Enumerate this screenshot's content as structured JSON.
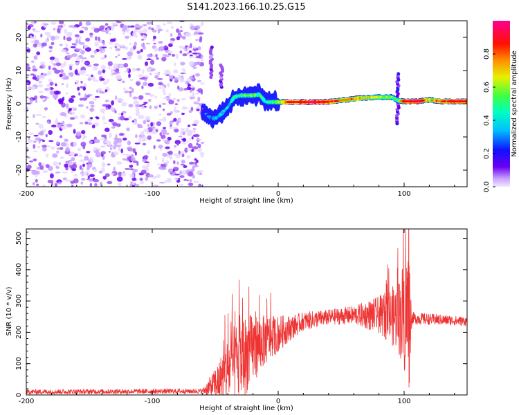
{
  "title": "S141.2023.166.10.25.G15",
  "colors": {
    "snr_line": "#ee3333",
    "colormap": [
      "#e8d8ff",
      "#c8a0ff",
      "#9a50f0",
      "#6a00f0",
      "#2020ff",
      "#00b0ff",
      "#00ffd0",
      "#40ff40",
      "#f0f000",
      "#ff8000",
      "#ff0000",
      "#ff0090"
    ]
  },
  "chart_data": [
    {
      "type": "heatmap",
      "xlabel": "Height of straight line (km)",
      "ylabel": "Frequency (Hz)",
      "xlim": [
        -200,
        150
      ],
      "ylim": [
        -25,
        25
      ],
      "xticks": [
        -200,
        -100,
        0,
        100
      ],
      "yticks": [
        -20,
        -10,
        0,
        10,
        20
      ],
      "colorbar": {
        "label": "Normalized spectral amplitude",
        "range": [
          0.0,
          1.0
        ],
        "ticks": [
          "0.0",
          "0.2",
          "0.4",
          "0.6",
          "0.8"
        ]
      },
      "noise_region": [
        -200,
        -60
      ],
      "ridge": [
        {
          "x": -60,
          "y": -2,
          "a": 0.25
        },
        {
          "x": -55,
          "y": -4,
          "a": 0.35
        },
        {
          "x": -50,
          "y": -4.5,
          "a": 0.4
        },
        {
          "x": -45,
          "y": -3,
          "a": 0.45
        },
        {
          "x": -40,
          "y": -1,
          "a": 0.45
        },
        {
          "x": -35,
          "y": 2,
          "a": 0.5
        },
        {
          "x": -30,
          "y": 2.5,
          "a": 0.55
        },
        {
          "x": -20,
          "y": 2.5,
          "a": 0.6
        },
        {
          "x": -15,
          "y": 2.8,
          "a": 0.55
        },
        {
          "x": -10,
          "y": 0.5,
          "a": 0.5
        },
        {
          "x": 0,
          "y": 0.5,
          "a": 0.6
        },
        {
          "x": 10,
          "y": 0.5,
          "a": 0.9
        },
        {
          "x": 20,
          "y": 0.5,
          "a": 0.9
        },
        {
          "x": 30,
          "y": 0.5,
          "a": 0.95
        },
        {
          "x": 40,
          "y": 0.6,
          "a": 0.85
        },
        {
          "x": 50,
          "y": 1.0,
          "a": 0.75
        },
        {
          "x": 60,
          "y": 1.5,
          "a": 0.75
        },
        {
          "x": 70,
          "y": 1.8,
          "a": 0.7
        },
        {
          "x": 80,
          "y": 2.0,
          "a": 0.65
        },
        {
          "x": 90,
          "y": 2.0,
          "a": 0.6
        },
        {
          "x": 95,
          "y": 1.0,
          "a": 0.5
        },
        {
          "x": 100,
          "y": 0.7,
          "a": 0.85
        },
        {
          "x": 110,
          "y": 0.7,
          "a": 0.9
        },
        {
          "x": 120,
          "y": 1.2,
          "a": 0.7
        },
        {
          "x": 130,
          "y": 0.7,
          "a": 0.8
        },
        {
          "x": 140,
          "y": 0.7,
          "a": 0.85
        },
        {
          "x": 150,
          "y": 0.7,
          "a": 0.85
        }
      ],
      "streaks": [
        {
          "x": -53,
          "y0": 8,
          "y1": 17,
          "a": 0.2
        },
        {
          "x": -45,
          "y0": 5,
          "y1": 12,
          "a": 0.2
        },
        {
          "x": 95,
          "y0": -6,
          "y1": 9,
          "a": 0.3
        }
      ]
    },
    {
      "type": "line",
      "xlabel": "Height of straight line (km)",
      "ylabel": "SNR (10 * v/v)",
      "xlim": [
        -200,
        150
      ],
      "ylim": [
        0,
        530
      ],
      "xticks": [
        -200,
        -100,
        0,
        100
      ],
      "yticks": [
        0,
        100,
        200,
        300,
        400,
        500
      ],
      "envelope": [
        {
          "x": -200,
          "mean": 10,
          "spread": 8
        },
        {
          "x": -60,
          "mean": 12,
          "spread": 8
        },
        {
          "x": -48,
          "mean": 40,
          "spread": 60
        },
        {
          "x": -40,
          "mean": 80,
          "spread": 110
        },
        {
          "x": -30,
          "mean": 110,
          "spread": 140
        },
        {
          "x": -20,
          "mean": 150,
          "spread": 110
        },
        {
          "x": -10,
          "mean": 175,
          "spread": 80
        },
        {
          "x": 0,
          "mean": 195,
          "spread": 60
        },
        {
          "x": 10,
          "mean": 215,
          "spread": 40
        },
        {
          "x": 20,
          "mean": 235,
          "spread": 30
        },
        {
          "x": 40,
          "mean": 248,
          "spread": 25
        },
        {
          "x": 60,
          "mean": 255,
          "spread": 30
        },
        {
          "x": 80,
          "mean": 255,
          "spread": 60
        },
        {
          "x": 95,
          "mean": 250,
          "spread": 110
        },
        {
          "x": 104,
          "mean": 260,
          "spread": 250
        },
        {
          "x": 106,
          "mean": 245,
          "spread": 20
        },
        {
          "x": 150,
          "mean": 235,
          "spread": 15
        }
      ]
    }
  ]
}
